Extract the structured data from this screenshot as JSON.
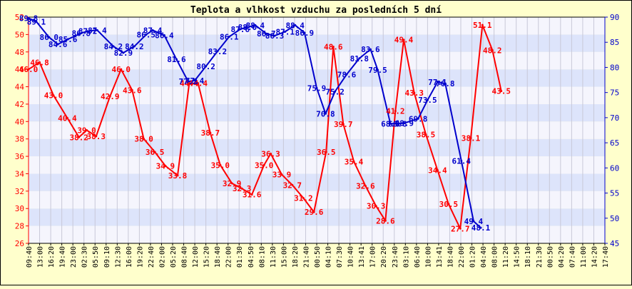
{
  "chart_data": {
    "type": "line",
    "title": "Teplota a vlhkost vzduchu za posledních 5 dní",
    "x": [
      "09:40",
      "13:00",
      "16:20",
      "19:40",
      "23:00",
      "02:30",
      "05:50",
      "09:10",
      "12:30",
      "16:00",
      "19:20",
      "22:40",
      "02:00",
      "05:20",
      "08:40",
      "12:00",
      "15:20",
      "18:40",
      "22:00",
      "01:30",
      "04:50",
      "08:10",
      "11:30",
      "15:00",
      "18:20",
      "21:40",
      "00:50",
      "04:10",
      "07:30",
      "10:40",
      "13:41",
      "17:00",
      "20:20",
      "23:40",
      "03:10",
      "06:40",
      "10:00",
      "13:41",
      "18:40",
      "22:00",
      "01:20",
      "04:40",
      "08:00",
      "11:20",
      "14:50",
      "18:10",
      "21:30",
      "00:50",
      "04:20",
      "07:40",
      "11:00",
      "14:20",
      "17:40"
    ],
    "y_left_ticks": [
      "26",
      "28",
      "30",
      "32",
      "34",
      "36",
      "38",
      "40",
      "42",
      "44",
      "46",
      "48",
      "50",
      "52"
    ],
    "y_right_ticks": [
      "45",
      "50",
      "55",
      "60",
      "65",
      "70",
      "75",
      "80",
      "85",
      "90"
    ],
    "ylim_left": [
      26,
      52
    ],
    "ylim_right": [
      45,
      90
    ],
    "grid": true,
    "series": [
      {
        "name": "",
        "axis": "left",
        "color": "#ff0000",
        "points": [
          {
            "x": 0.0,
            "y": 46.0,
            "label": "46.0"
          },
          {
            "x": 1.0,
            "y": 46.8,
            "label": "46.8"
          },
          {
            "x": 2.25,
            "y": 43.0,
            "label": "43.0"
          },
          {
            "x": 3.5,
            "y": 40.4,
            "label": "40.4"
          },
          {
            "x": 4.55,
            "y": 38.2,
            "label": "38.2"
          },
          {
            "x": 5.25,
            "y": 39.0,
            "label": "39.0"
          },
          {
            "x": 6.1,
            "y": 38.3,
            "label": "38.3"
          },
          {
            "x": 7.35,
            "y": 42.9,
            "label": "42.9"
          },
          {
            "x": 8.35,
            "y": 46.0,
            "label": "46.0"
          },
          {
            "x": 9.35,
            "y": 43.6,
            "label": "43.6"
          },
          {
            "x": 10.4,
            "y": 38.0,
            "label": "38.0"
          },
          {
            "x": 11.4,
            "y": 36.5,
            "label": "36.5"
          },
          {
            "x": 12.35,
            "y": 34.9,
            "label": "34.9"
          },
          {
            "x": 13.45,
            "y": 33.8,
            "label": "33.8"
          },
          {
            "x": 14.5,
            "y": 44.4,
            "label": "44.4"
          },
          {
            "x": 15.3,
            "y": 44.4,
            "label": "44.4"
          },
          {
            "x": 16.4,
            "y": 38.7,
            "label": "38.7"
          },
          {
            "x": 17.3,
            "y": 35.0,
            "label": "35.0"
          },
          {
            "x": 18.35,
            "y": 32.9,
            "label": "32.9"
          },
          {
            "x": 19.25,
            "y": 32.3,
            "label": "32.3"
          },
          {
            "x": 20.15,
            "y": 31.6,
            "label": "31.6"
          },
          {
            "x": 21.25,
            "y": 35.0,
            "label": "35.0"
          },
          {
            "x": 21.85,
            "y": 36.3,
            "label": "36.3"
          },
          {
            "x": 22.85,
            "y": 33.9,
            "label": "33.9"
          },
          {
            "x": 23.8,
            "y": 32.7,
            "label": "32.7"
          },
          {
            "x": 24.8,
            "y": 31.2,
            "label": "31.2"
          },
          {
            "x": 25.75,
            "y": 29.6,
            "label": "29.6"
          },
          {
            "x": 26.85,
            "y": 36.5,
            "label": "36.5"
          },
          {
            "x": 27.5,
            "y": 48.6,
            "label": "48.6"
          },
          {
            "x": 28.4,
            "y": 39.7,
            "label": "39.7"
          },
          {
            "x": 29.35,
            "y": 35.4,
            "label": "35.4"
          },
          {
            "x": 30.4,
            "y": 32.6,
            "label": "32.6"
          },
          {
            "x": 31.35,
            "y": 30.3,
            "label": "30.3"
          },
          {
            "x": 32.2,
            "y": 28.6,
            "label": "28.6"
          },
          {
            "x": 33.1,
            "y": 41.2,
            "label": "41.2"
          },
          {
            "x": 33.85,
            "y": 49.4,
            "label": "49.4"
          },
          {
            "x": 34.8,
            "y": 43.3,
            "label": "43.3"
          },
          {
            "x": 35.85,
            "y": 38.5,
            "label": "38.5"
          },
          {
            "x": 36.9,
            "y": 34.4,
            "label": "34.4"
          },
          {
            "x": 37.9,
            "y": 30.5,
            "label": "30.5"
          },
          {
            "x": 38.95,
            "y": 27.7,
            "label": "27.7"
          },
          {
            "x": 39.9,
            "y": 38.1,
            "label": "38.1"
          },
          {
            "x": 40.95,
            "y": 51.1,
            "label": "51.1"
          },
          {
            "x": 41.85,
            "y": 48.2,
            "label": "48.2"
          },
          {
            "x": 42.65,
            "y": 43.5,
            "label": "43.5"
          }
        ]
      },
      {
        "name": "",
        "axis": "right",
        "color": "#0000cc",
        "points": [
          {
            "x": 0.0,
            "y": 89.8,
            "label": "89.8"
          },
          {
            "x": 0.7,
            "y": 89.1,
            "label": "89.1"
          },
          {
            "x": 1.85,
            "y": 86.0,
            "label": "86.0"
          },
          {
            "x": 2.65,
            "y": 84.6,
            "label": "84.6"
          },
          {
            "x": 3.55,
            "y": 85.6,
            "label": "85.6"
          },
          {
            "x": 4.75,
            "y": 86.8,
            "label": "86.8"
          },
          {
            "x": 5.35,
            "y": 87.2,
            "label": "87.2"
          },
          {
            "x": 6.2,
            "y": 87.4,
            "label": "87.4"
          },
          {
            "x": 7.65,
            "y": 84.2,
            "label": "84.2"
          },
          {
            "x": 8.55,
            "y": 82.9,
            "label": "82.9"
          },
          {
            "x": 9.55,
            "y": 84.2,
            "label": "84.2"
          },
          {
            "x": 10.6,
            "y": 86.5,
            "label": "86.5"
          },
          {
            "x": 11.2,
            "y": 87.4,
            "label": "87.4"
          },
          {
            "x": 12.25,
            "y": 86.4,
            "label": "86.4"
          },
          {
            "x": 13.35,
            "y": 81.6,
            "label": "81.6"
          },
          {
            "x": 14.4,
            "y": 77.2,
            "label": "77.2"
          },
          {
            "x": 15.0,
            "y": 77.4,
            "label": "77.4"
          },
          {
            "x": 16.0,
            "y": 80.2,
            "label": "80.2"
          },
          {
            "x": 17.05,
            "y": 83.2,
            "label": "83.2"
          },
          {
            "x": 18.1,
            "y": 86.1,
            "label": "86.1"
          },
          {
            "x": 19.1,
            "y": 87.6,
            "label": "87.6"
          },
          {
            "x": 19.75,
            "y": 88.0,
            "label": "88.0"
          },
          {
            "x": 20.45,
            "y": 88.4,
            "label": "88.4"
          },
          {
            "x": 21.45,
            "y": 86.7,
            "label": "86.7"
          },
          {
            "x": 22.2,
            "y": 86.3,
            "label": "86.3"
          },
          {
            "x": 23.15,
            "y": 87.1,
            "label": "87.1"
          },
          {
            "x": 24.05,
            "y": 88.4,
            "label": "88.4"
          },
          {
            "x": 24.9,
            "y": 86.9,
            "label": "86.9"
          },
          {
            "x": 26.0,
            "y": 75.9,
            "label": "75.9"
          },
          {
            "x": 26.8,
            "y": 70.8,
            "label": "70.8"
          },
          {
            "x": 27.65,
            "y": 75.2,
            "label": "75.2"
          },
          {
            "x": 28.7,
            "y": 78.6,
            "label": "78.6"
          },
          {
            "x": 29.85,
            "y": 81.8,
            "label": "81.8"
          },
          {
            "x": 30.85,
            "y": 83.6,
            "label": "83.6"
          },
          {
            "x": 31.5,
            "y": 79.5,
            "label": "79.5"
          },
          {
            "x": 32.65,
            "y": 68.8,
            "label": "68.8"
          },
          {
            "x": 33.3,
            "y": 68.8,
            "label": "68.8"
          },
          {
            "x": 33.9,
            "y": 68.9,
            "label": "68.9"
          },
          {
            "x": 35.15,
            "y": 69.8,
            "label": "69.8"
          },
          {
            "x": 36.0,
            "y": 73.5,
            "label": "73.5"
          },
          {
            "x": 36.9,
            "y": 77.1,
            "label": "77.1"
          },
          {
            "x": 37.6,
            "y": 76.8,
            "label": "76.8"
          },
          {
            "x": 39.05,
            "y": 61.4,
            "label": "61.4"
          },
          {
            "x": 40.15,
            "y": 49.4,
            "label": "49.4"
          },
          {
            "x": 40.8,
            "y": 48.1,
            "label": "48.1"
          }
        ]
      }
    ]
  }
}
